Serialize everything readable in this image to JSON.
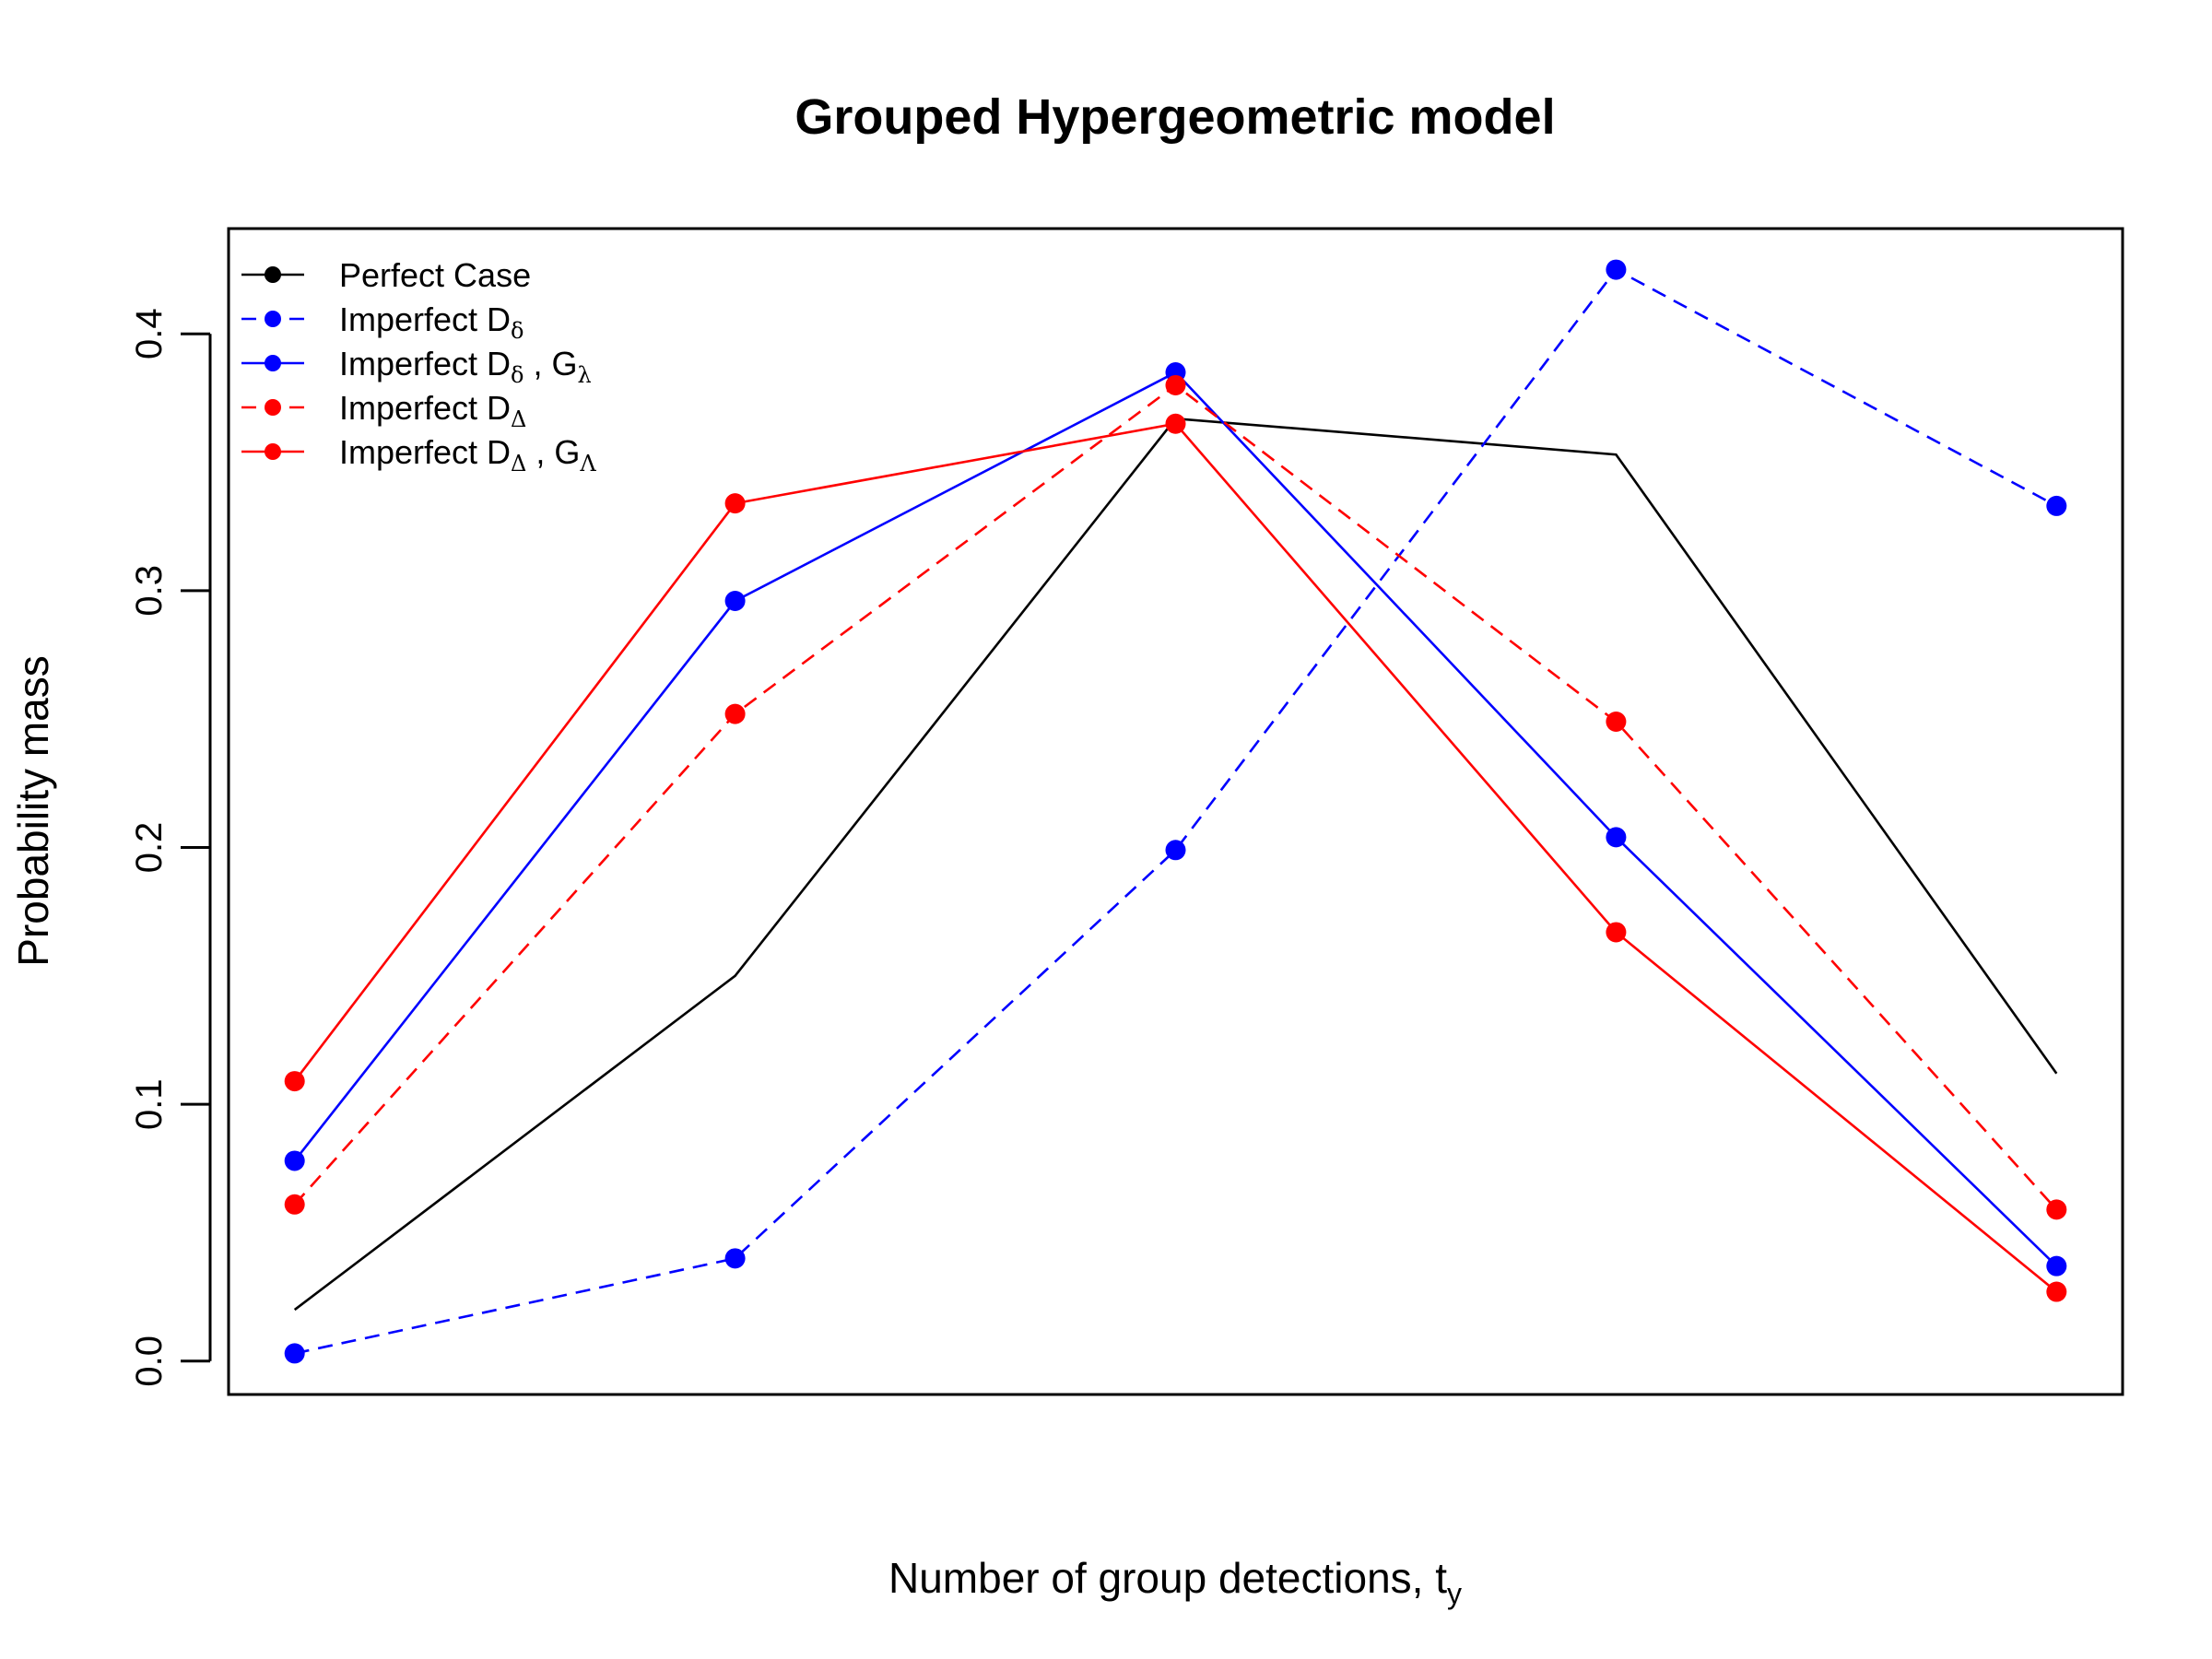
{
  "chart_data": {
    "type": "line",
    "title": "Grouped Hypergeometric model",
    "xlabel": "Number of group detections, t",
    "xlabel_sub": "y",
    "ylabel": "Probability mass",
    "x": [
      1,
      2,
      3,
      4,
      5
    ],
    "xlim": [
      0.85,
      5.15
    ],
    "ylim": [
      -0.013,
      0.441
    ],
    "yticks": [
      0.0,
      0.1,
      0.2,
      0.3,
      0.4
    ],
    "ytick_labels": [
      "0.0",
      "0.1",
      "0.2",
      "0.3",
      "0.4"
    ],
    "grid": false,
    "legend_position": "top-left",
    "series": [
      {
        "name": "Perfect Case",
        "legend": {
          "text": "Perfect Case",
          "sub1": "",
          "mid": "",
          "sub2": ""
        },
        "color": "#000000",
        "dash": "solid",
        "markers": false,
        "values": [
          0.02,
          0.15,
          0.367,
          0.353,
          0.112
        ]
      },
      {
        "name": "Imperfect Dδ",
        "legend": {
          "text": "Imperfect D",
          "sub1": "δ",
          "mid": "",
          "sub2": ""
        },
        "color": "#0000ff",
        "dash": "dashed",
        "markers": true,
        "values": [
          0.003,
          0.04,
          0.199,
          0.425,
          0.333
        ]
      },
      {
        "name": "Imperfect Dδ , Gλ",
        "legend": {
          "text": "Imperfect D",
          "sub1": "δ",
          "mid": " , G",
          "sub2": "λ"
        },
        "color": "#0000ff",
        "dash": "solid",
        "markers": true,
        "values": [
          0.078,
          0.296,
          0.385,
          0.204,
          0.037
        ]
      },
      {
        "name": "Imperfect DΔ",
        "legend": {
          "text": "Imperfect D",
          "sub1": "Δ",
          "mid": "",
          "sub2": ""
        },
        "color": "#ff0000",
        "dash": "dashed",
        "markers": true,
        "values": [
          0.061,
          0.252,
          0.38,
          0.249,
          0.059
        ]
      },
      {
        "name": "Imperfect DΔ , GΛ",
        "legend": {
          "text": "Imperfect D",
          "sub1": "Δ",
          "mid": " , G",
          "sub2": "Λ"
        },
        "color": "#ff0000",
        "dash": "solid",
        "markers": true,
        "values": [
          0.109,
          0.334,
          0.365,
          0.167,
          0.027
        ]
      }
    ]
  }
}
